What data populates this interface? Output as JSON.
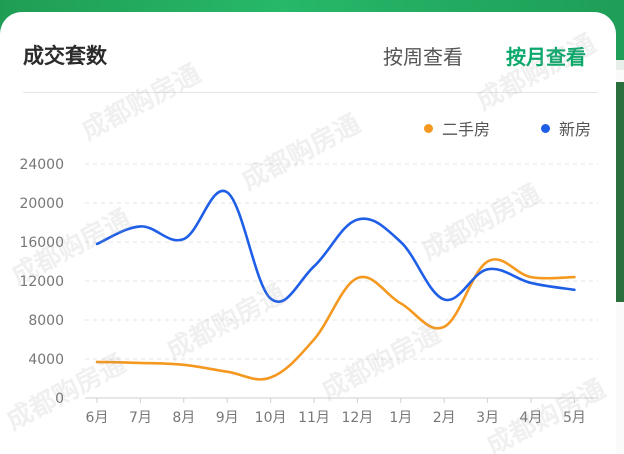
{
  "card": {
    "title": "成交套数",
    "tabs": [
      {
        "label": "按周查看",
        "active": false
      },
      {
        "label": "按月查看",
        "active": true
      }
    ],
    "watermark": "成都购房通"
  },
  "colors": {
    "accent": "#0aa86a",
    "second_hand": "#f5981f",
    "new_house": "#1f5fe8",
    "grid": "#e4e4e4",
    "tick": "#777777"
  },
  "chart_data": {
    "type": "line",
    "title": "",
    "xlabel": "",
    "ylabel": "",
    "categories": [
      "6月",
      "7月",
      "8月",
      "9月",
      "10月",
      "11月",
      "12月",
      "1月",
      "2月",
      "3月",
      "4月",
      "5月"
    ],
    "ylim": [
      0,
      24000
    ],
    "yticks": [
      0,
      4000,
      8000,
      12000,
      16000,
      20000,
      24000
    ],
    "grid": true,
    "legend": "top-right",
    "series": [
      {
        "name": "二手房",
        "color": "#f5981f",
        "values": [
          3700,
          3600,
          3400,
          2700,
          2100,
          6000,
          12300,
          9700,
          7300,
          14000,
          12400,
          12400
        ]
      },
      {
        "name": "新房",
        "color": "#1f5fe8",
        "values": [
          15800,
          17600,
          16300,
          21100,
          10200,
          13500,
          18300,
          16000,
          10100,
          13200,
          11800,
          11100
        ]
      }
    ]
  }
}
